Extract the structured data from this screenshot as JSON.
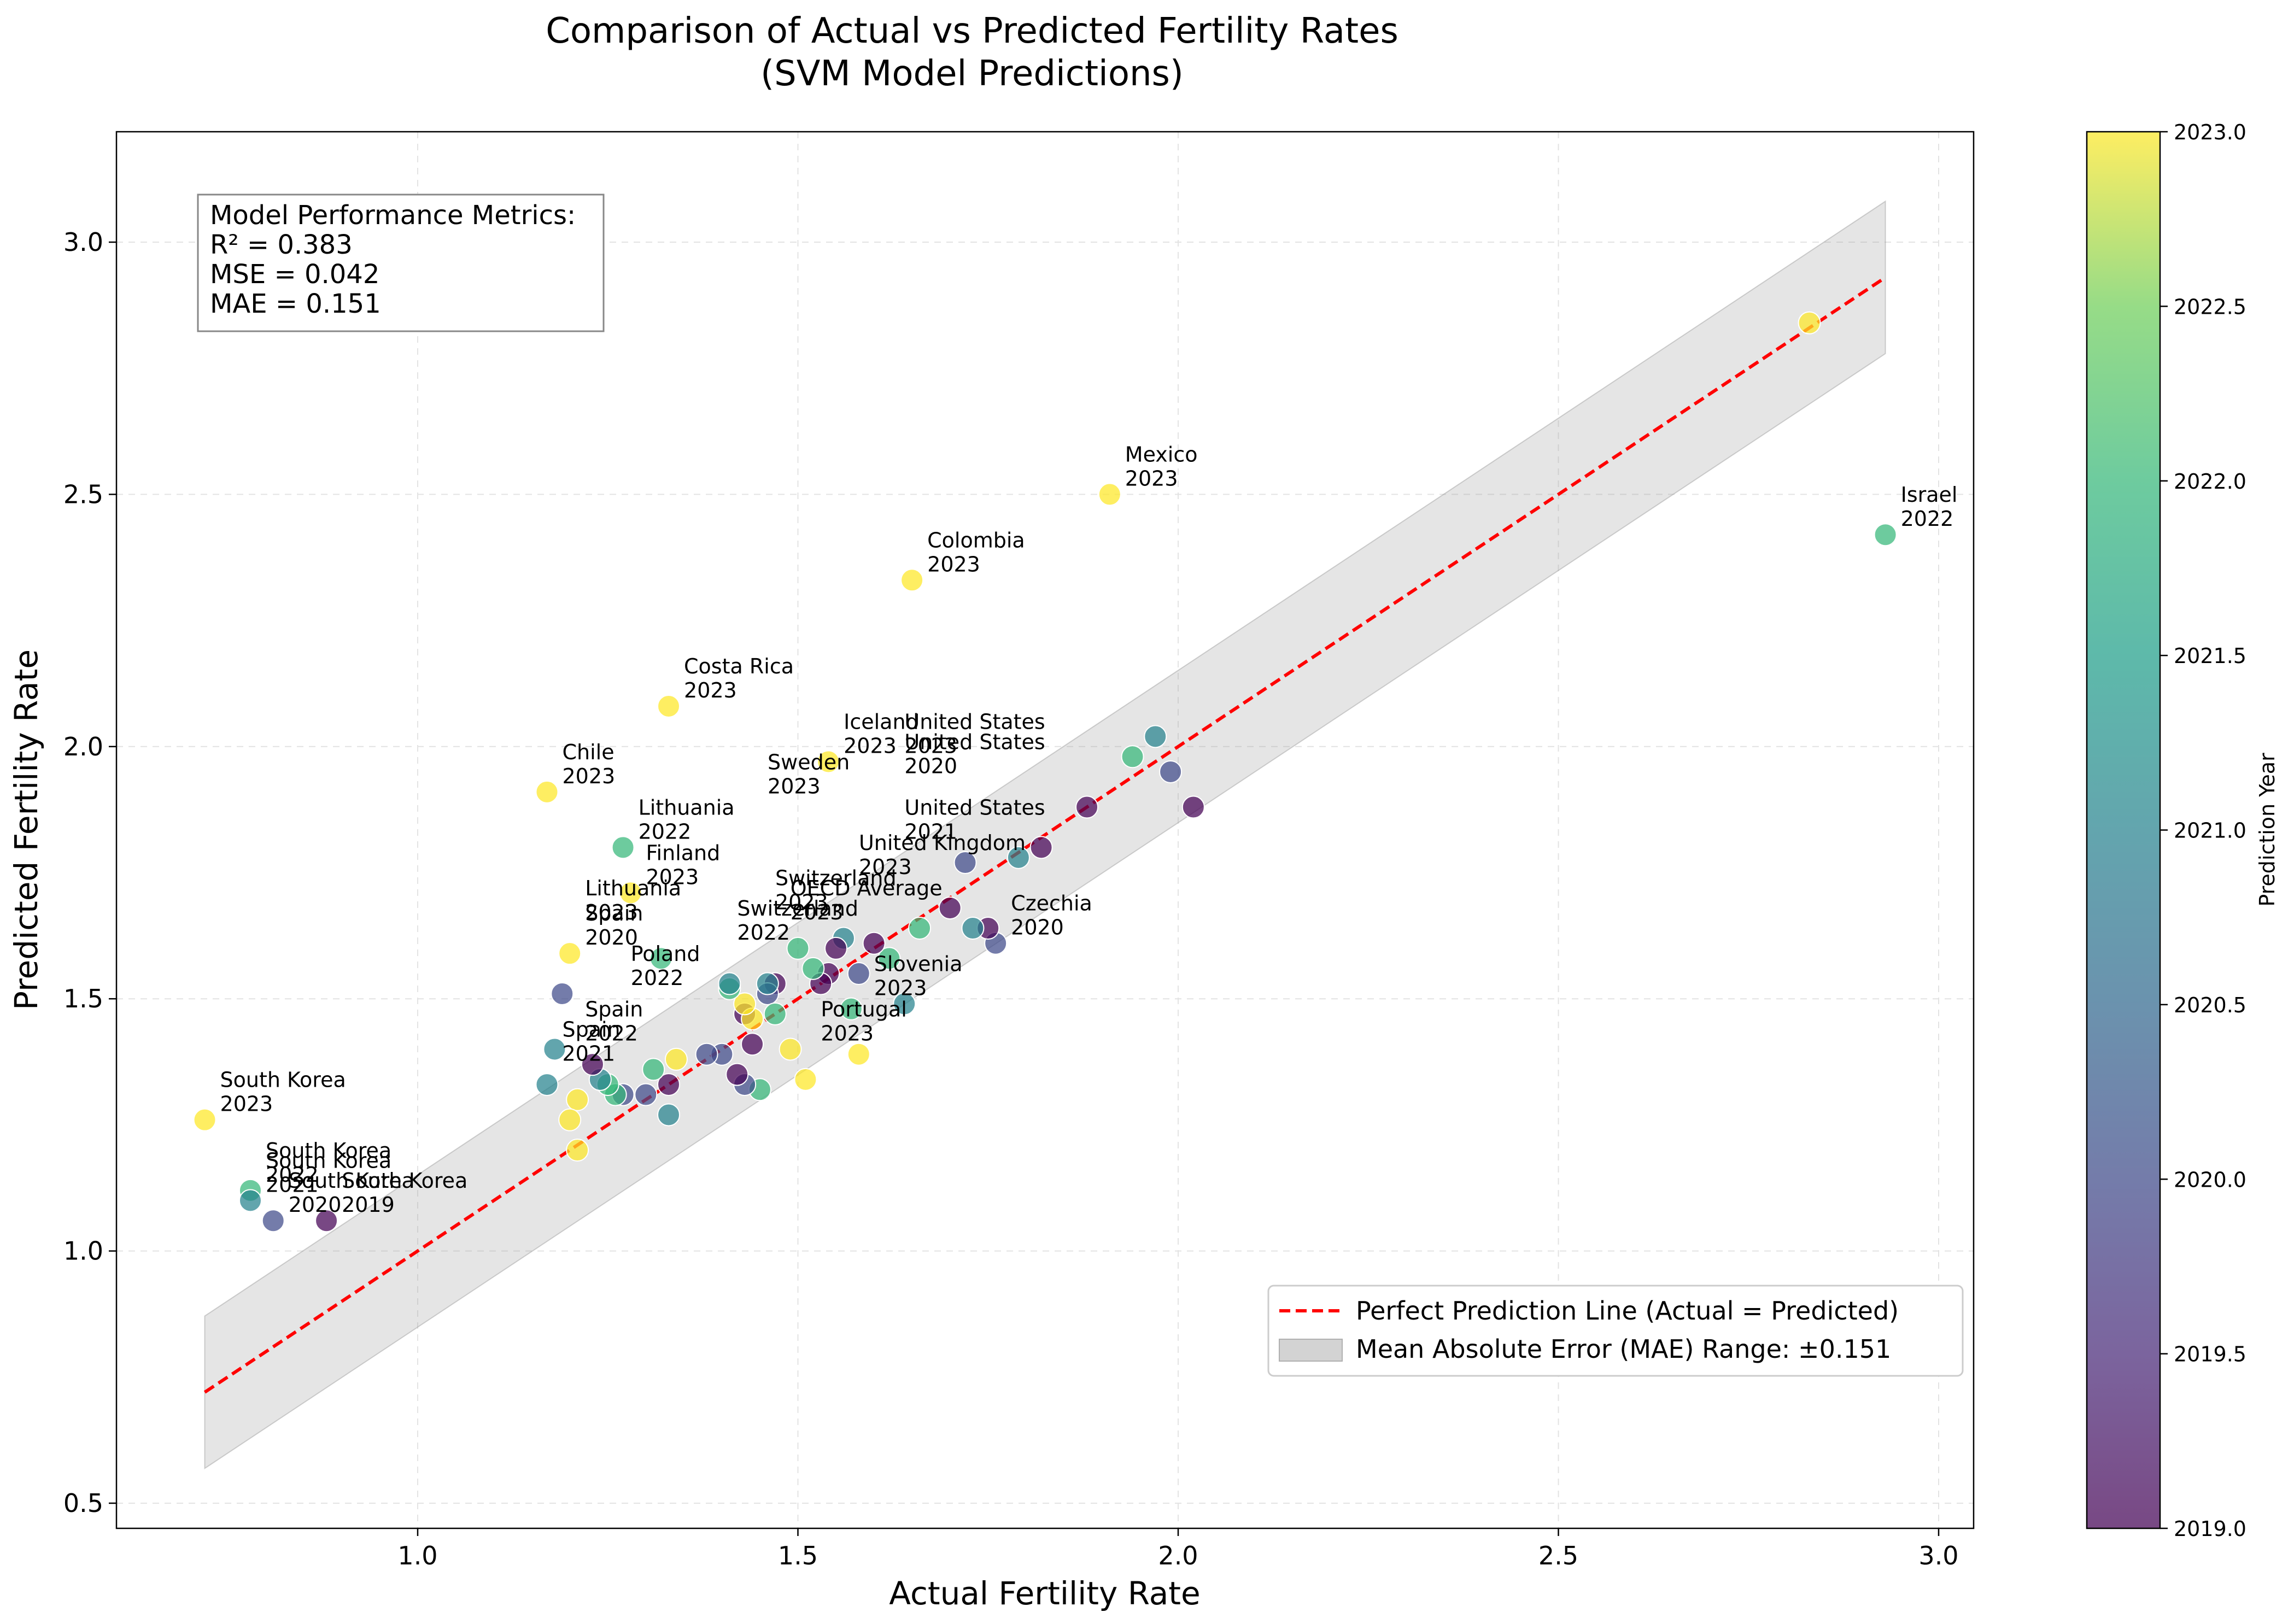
{
  "chart_data": {
    "type": "scatter",
    "title": "Comparison of Actual vs Predicted Fertility Rates",
    "subtitle": "(SVM Model Predictions)",
    "xlabel": "Actual Fertility Rate",
    "ylabel": "Predicted Fertility Rate",
    "xlim": [
      0.61,
      3.05
    ],
    "ylim": [
      0.45,
      3.21
    ],
    "x_ticks": [
      "1.0",
      "1.5",
      "2.0",
      "2.5",
      "3.0"
    ],
    "y_ticks": [
      "0.5",
      "1.0",
      "1.5",
      "2.0",
      "2.5",
      "3.0"
    ],
    "grid": true,
    "colorbar": {
      "label": "Prediction Year",
      "range": [
        2019.0,
        2023.0
      ],
      "ticks": [
        "2019.0",
        "2019.5",
        "2020.0",
        "2020.5",
        "2021.0",
        "2021.5",
        "2022.0",
        "2022.5",
        "2023.0"
      ],
      "colormap": "viridis"
    },
    "perfect_line": {
      "label": "Perfect Prediction Line (Actual = Predicted)",
      "color": "#ff0000",
      "x": [
        0.72,
        2.93
      ]
    },
    "mae_band": {
      "label": "Mean Absolute Error (MAE) Range: ±0.151",
      "mae": 0.151,
      "color": "#c8c8c8"
    },
    "legend_position": "lower-right",
    "metrics": [
      "Model Performance Metrics:",
      "R² = 0.383",
      "MSE = 0.042",
      "MAE = 0.151"
    ],
    "points": [
      {
        "x": 0.72,
        "y": 1.26,
        "year": 2023
      },
      {
        "x": 0.78,
        "y": 1.12,
        "year": 2022
      },
      {
        "x": 0.78,
        "y": 1.1,
        "year": 2021
      },
      {
        "x": 0.81,
        "y": 1.06,
        "year": 2020
      },
      {
        "x": 0.88,
        "y": 1.06,
        "year": 2019
      },
      {
        "x": 1.17,
        "y": 1.91,
        "year": 2023
      },
      {
        "x": 1.33,
        "y": 2.08,
        "year": 2023
      },
      {
        "x": 1.65,
        "y": 2.33,
        "year": 2023
      },
      {
        "x": 1.91,
        "y": 2.5,
        "year": 2023
      },
      {
        "x": 2.93,
        "y": 2.42,
        "year": 2022
      },
      {
        "x": 2.83,
        "y": 2.84,
        "year": 2023
      },
      {
        "x": 1.27,
        "y": 1.8,
        "year": 2022
      },
      {
        "x": 1.28,
        "y": 1.71,
        "year": 2023
      },
      {
        "x": 1.54,
        "y": 1.97,
        "year": 2023
      },
      {
        "x": 1.94,
        "y": 1.98,
        "year": 2022
      },
      {
        "x": 1.97,
        "y": 2.02,
        "year": 2021
      },
      {
        "x": 1.99,
        "y": 1.95,
        "year": 2020
      },
      {
        "x": 2.02,
        "y": 1.88,
        "year": 2019
      },
      {
        "x": 1.88,
        "y": 1.88,
        "year": 2019
      },
      {
        "x": 1.82,
        "y": 1.8,
        "year": 2019
      },
      {
        "x": 1.79,
        "y": 1.78,
        "year": 2021
      },
      {
        "x": 1.72,
        "y": 1.77,
        "year": 2020
      },
      {
        "x": 1.76,
        "y": 1.61,
        "year": 2020
      },
      {
        "x": 1.75,
        "y": 1.64,
        "year": 2019
      },
      {
        "x": 1.73,
        "y": 1.64,
        "year": 2021
      },
      {
        "x": 1.66,
        "y": 1.64,
        "year": 2022
      },
      {
        "x": 1.7,
        "y": 1.68,
        "year": 2019
      },
      {
        "x": 1.62,
        "y": 1.58,
        "year": 2022
      },
      {
        "x": 1.6,
        "y": 1.61,
        "year": 2019
      },
      {
        "x": 1.58,
        "y": 1.55,
        "year": 2020
      },
      {
        "x": 1.57,
        "y": 1.48,
        "year": 2022
      },
      {
        "x": 1.64,
        "y": 1.49,
        "year": 2021
      },
      {
        "x": 1.56,
        "y": 1.62,
        "year": 2021
      },
      {
        "x": 1.54,
        "y": 1.55,
        "year": 2019
      },
      {
        "x": 1.53,
        "y": 1.53,
        "year": 2019
      },
      {
        "x": 1.52,
        "y": 1.56,
        "year": 2022
      },
      {
        "x": 1.58,
        "y": 1.39,
        "year": 2023
      },
      {
        "x": 1.51,
        "y": 1.34,
        "year": 2023
      },
      {
        "x": 1.49,
        "y": 1.4,
        "year": 2023
      },
      {
        "x": 1.47,
        "y": 1.53,
        "year": 2019
      },
      {
        "x": 1.46,
        "y": 1.51,
        "year": 2020
      },
      {
        "x": 1.46,
        "y": 1.53,
        "year": 2021
      },
      {
        "x": 1.47,
        "y": 1.47,
        "year": 2022
      },
      {
        "x": 1.44,
        "y": 1.41,
        "year": 2019
      },
      {
        "x": 1.43,
        "y": 1.47,
        "year": 2019
      },
      {
        "x": 1.44,
        "y": 1.46,
        "year": 2023
      },
      {
        "x": 1.43,
        "y": 1.49,
        "year": 2023
      },
      {
        "x": 1.45,
        "y": 1.32,
        "year": 2022
      },
      {
        "x": 1.43,
        "y": 1.33,
        "year": 2020
      },
      {
        "x": 1.42,
        "y": 1.35,
        "year": 2019
      },
      {
        "x": 1.41,
        "y": 1.52,
        "year": 2022
      },
      {
        "x": 1.41,
        "y": 1.53,
        "year": 2021
      },
      {
        "x": 1.4,
        "y": 1.39,
        "year": 2020
      },
      {
        "x": 1.38,
        "y": 1.39,
        "year": 2020
      },
      {
        "x": 1.34,
        "y": 1.38,
        "year": 2023
      },
      {
        "x": 1.33,
        "y": 1.33,
        "year": 2019
      },
      {
        "x": 1.33,
        "y": 1.27,
        "year": 2021
      },
      {
        "x": 1.32,
        "y": 1.58,
        "year": 2022
      },
      {
        "x": 1.31,
        "y": 1.36,
        "year": 2022
      },
      {
        "x": 1.3,
        "y": 1.31,
        "year": 2020
      },
      {
        "x": 1.27,
        "y": 1.31,
        "year": 2020
      },
      {
        "x": 1.26,
        "y": 1.31,
        "year": 2022
      },
      {
        "x": 1.25,
        "y": 1.33,
        "year": 2022
      },
      {
        "x": 1.24,
        "y": 1.34,
        "year": 2021
      },
      {
        "x": 1.23,
        "y": 1.37,
        "year": 2019
      },
      {
        "x": 1.21,
        "y": 1.3,
        "year": 2023
      },
      {
        "x": 1.21,
        "y": 1.2,
        "year": 2023
      },
      {
        "x": 1.2,
        "y": 1.26,
        "year": 2023
      },
      {
        "x": 1.17,
        "y": 1.33,
        "year": 2021
      },
      {
        "x": 1.18,
        "y": 1.4,
        "year": 2021
      },
      {
        "x": 1.19,
        "y": 1.51,
        "year": 2020
      },
      {
        "x": 1.2,
        "y": 1.59,
        "year": 2023
      },
      {
        "x": 1.5,
        "y": 1.6,
        "year": 2022
      },
      {
        "x": 1.55,
        "y": 1.6,
        "year": 2019
      }
    ],
    "annotations": [
      {
        "text": "South Korea\n2023",
        "x": 0.72,
        "y": 1.26
      },
      {
        "text": "South Korea\n2022",
        "x": 0.78,
        "y": 1.12
      },
      {
        "text": "South Korea\n2021",
        "x": 0.78,
        "y": 1.1
      },
      {
        "text": "South Korea\n2020",
        "x": 0.81,
        "y": 1.06
      },
      {
        "text": "South Korea\n2019",
        "x": 0.88,
        "y": 1.06
      },
      {
        "text": "Chile\n2023",
        "x": 1.17,
        "y": 1.91
      },
      {
        "text": "Costa Rica\n2023",
        "x": 1.33,
        "y": 2.08
      },
      {
        "text": "Colombia\n2023",
        "x": 1.65,
        "y": 2.33
      },
      {
        "text": "Mexico\n2023",
        "x": 1.91,
        "y": 2.5
      },
      {
        "text": "Israel\n2022",
        "x": 2.93,
        "y": 2.42
      },
      {
        "text": "Lithuania\n2022",
        "x": 1.27,
        "y": 1.8
      },
      {
        "text": "Finland\n2023",
        "x": 1.28,
        "y": 1.71
      },
      {
        "text": "Lithuania\n2023",
        "x": 1.2,
        "y": 1.64
      },
      {
        "text": "Spain\n2020",
        "x": 1.2,
        "y": 1.59
      },
      {
        "text": "Spain\n2022",
        "x": 1.2,
        "y": 1.4
      },
      {
        "text": "Spain\n2021",
        "x": 1.17,
        "y": 1.36
      },
      {
        "text": "Poland\n2022",
        "x": 1.26,
        "y": 1.51
      },
      {
        "text": "Iceland\n2023",
        "x": 1.54,
        "y": 1.97
      },
      {
        "text": "United States\n2023",
        "x": 1.62,
        "y": 1.97
      },
      {
        "text": "United States\n2020",
        "x": 1.62,
        "y": 1.93
      },
      {
        "text": "United States\n2021",
        "x": 1.62,
        "y": 1.8
      },
      {
        "text": "United Kingdom\n2023",
        "x": 1.56,
        "y": 1.73
      },
      {
        "text": "Sweden\n2023",
        "x": 1.44,
        "y": 1.89
      },
      {
        "text": "Switzerland\n2023",
        "x": 1.45,
        "y": 1.66
      },
      {
        "text": "Switzerland\n2022",
        "x": 1.4,
        "y": 1.6
      },
      {
        "text": "OECD Average\n2023",
        "x": 1.47,
        "y": 1.64
      },
      {
        "text": "Czechia\n2020",
        "x": 1.76,
        "y": 1.61
      },
      {
        "text": "Slovenia\n2023",
        "x": 1.58,
        "y": 1.49
      },
      {
        "text": "Portugal\n2023",
        "x": 1.51,
        "y": 1.4
      }
    ]
  }
}
